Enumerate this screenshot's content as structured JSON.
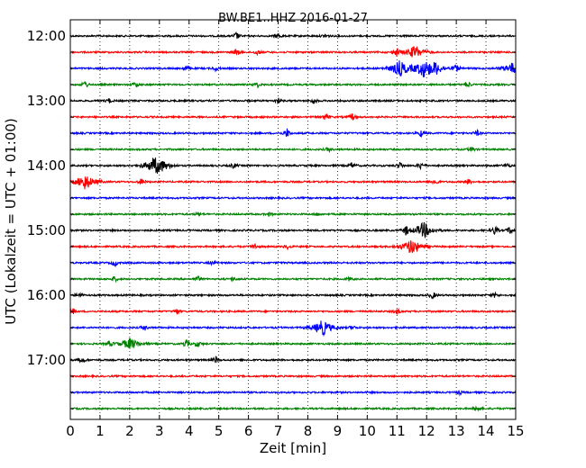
{
  "chart_data": {
    "type": "line",
    "title": "BW.BE1..HHZ 2016-01-27",
    "xlabel": "Zeit  [min]",
    "ylabel": "UTC (Lokalzeit = UTC + 01:00)",
    "xlim": [
      0,
      15
    ],
    "x_ticks": [
      "0",
      "1",
      "2",
      "3",
      "4",
      "5",
      "6",
      "7",
      "8",
      "9",
      "10",
      "11",
      "12",
      "13",
      "14",
      "15"
    ],
    "y_tick_labels": [
      "12:00",
      "13:00",
      "14:00",
      "15:00",
      "16:00",
      "17:00"
    ],
    "grid": "vertical dotted at each minute",
    "trace_colors": [
      "#000000",
      "#ff0000",
      "#0000ff",
      "#008000"
    ],
    "traces": [
      {
        "start": "12:00",
        "events": [
          [
            5.6,
            0.5
          ],
          [
            7.0,
            0.35
          ],
          [
            8.6,
            0.35
          ]
        ]
      },
      {
        "start": "12:15",
        "events": [
          [
            5.6,
            0.5
          ],
          [
            6.3,
            0.35
          ],
          [
            11.0,
            0.5
          ],
          [
            11.6,
            0.8
          ]
        ]
      },
      {
        "start": "12:30",
        "events": [
          [
            3.9,
            0.35
          ],
          [
            4.9,
            0.3
          ],
          [
            11.1,
            1.0
          ],
          [
            11.9,
            1.0
          ],
          [
            12.3,
            0.7
          ],
          [
            13.0,
            0.5
          ],
          [
            14.9,
            0.7
          ]
        ]
      },
      {
        "start": "12:45",
        "events": [
          [
            0.5,
            0.5
          ],
          [
            2.2,
            0.35
          ],
          [
            6.3,
            0.35
          ],
          [
            13.4,
            0.35
          ]
        ]
      },
      {
        "start": "13:00",
        "events": [
          [
            1.3,
            0.3
          ],
          [
            7.0,
            0.35
          ],
          [
            8.2,
            0.35
          ]
        ]
      },
      {
        "start": "13:15",
        "events": [
          [
            8.6,
            0.45
          ],
          [
            9.5,
            0.45
          ]
        ]
      },
      {
        "start": "13:30",
        "events": [
          [
            7.3,
            0.6
          ],
          [
            11.8,
            0.45
          ],
          [
            13.7,
            0.35
          ]
        ]
      },
      {
        "start": "13:45",
        "events": [
          [
            8.7,
            0.3
          ],
          [
            13.5,
            0.3
          ]
        ]
      },
      {
        "start": "14:00",
        "events": [
          [
            2.8,
            0.7
          ],
          [
            3.0,
            0.7
          ],
          [
            5.5,
            0.35
          ],
          [
            9.5,
            0.45
          ],
          [
            11.1,
            0.45
          ],
          [
            11.8,
            0.45
          ],
          [
            14.7,
            0.35
          ]
        ]
      },
      {
        "start": "14:15",
        "events": [
          [
            0.5,
            1.0
          ],
          [
            2.4,
            0.45
          ],
          [
            12.3,
            0.45
          ],
          [
            13.4,
            0.35
          ]
        ]
      },
      {
        "start": "14:30",
        "events": []
      },
      {
        "start": "14:45",
        "events": [
          [
            4.3,
            0.2
          ],
          [
            6.7,
            0.2
          ],
          [
            8.3,
            0.2
          ]
        ]
      },
      {
        "start": "15:00",
        "events": [
          [
            11.3,
            0.6
          ],
          [
            11.9,
            1.0
          ],
          [
            14.3,
            0.6
          ],
          [
            14.8,
            0.5
          ]
        ]
      },
      {
        "start": "15:15",
        "events": [
          [
            6.2,
            0.45
          ],
          [
            7.3,
            0.3
          ],
          [
            11.5,
            1.0
          ]
        ]
      },
      {
        "start": "15:30",
        "events": [
          [
            1.5,
            0.45
          ],
          [
            4.8,
            0.25
          ]
        ]
      },
      {
        "start": "15:45",
        "events": [
          [
            1.5,
            0.3
          ],
          [
            4.3,
            0.35
          ],
          [
            5.5,
            0.25
          ],
          [
            9.4,
            0.25
          ]
        ]
      },
      {
        "start": "16:00",
        "events": [
          [
            0.3,
            0.3
          ],
          [
            12.2,
            0.5
          ],
          [
            14.3,
            0.3
          ]
        ]
      },
      {
        "start": "16:15",
        "events": [
          [
            0.1,
            0.35
          ],
          [
            3.6,
            0.35
          ],
          [
            11.0,
            0.4
          ]
        ]
      },
      {
        "start": "16:30",
        "events": [
          [
            2.5,
            0.35
          ],
          [
            8.5,
            1.0
          ],
          [
            9.5,
            0.3
          ]
        ]
      },
      {
        "start": "16:45",
        "events": [
          [
            1.3,
            0.35
          ],
          [
            2.0,
            0.7
          ],
          [
            3.9,
            0.6
          ],
          [
            4.3,
            0.4
          ]
        ]
      },
      {
        "start": "17:00",
        "events": [
          [
            0.4,
            0.4
          ],
          [
            4.9,
            0.45
          ]
        ]
      },
      {
        "start": "17:15",
        "events": []
      },
      {
        "start": "17:30",
        "events": [
          [
            13.1,
            0.25
          ]
        ]
      },
      {
        "start": "17:45",
        "events": [
          [
            13.7,
            0.45
          ]
        ]
      }
    ]
  }
}
